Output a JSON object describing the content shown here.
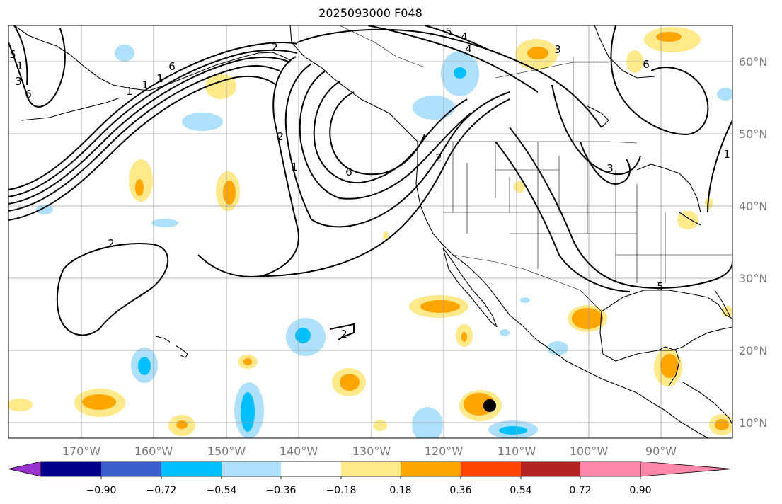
{
  "title": "2025093000 F048",
  "map": {
    "lon_labels": [
      "170°W",
      "160°W",
      "150°W",
      "140°W",
      "130°W",
      "120°W",
      "110°W",
      "100°W",
      "90°W"
    ],
    "lat_labels": [
      "60°N",
      "50°N",
      "40°N",
      "30°N",
      "20°N",
      "10°N"
    ],
    "contour_labels": [
      "5",
      "4",
      "3",
      "2",
      "2",
      "6",
      "6",
      "2",
      "3",
      "6",
      "5",
      "2",
      "2",
      "1",
      "3",
      "1",
      "1",
      "1",
      "1",
      "1",
      "4",
      "5",
      "6"
    ],
    "marker": "storm-center-dot",
    "colors": {
      "coast": "#000000",
      "grid": "#9e9e9e",
      "contour": "#000000"
    }
  },
  "colorbar": {
    "tick_labels": [
      "−0.90",
      "−0.72",
      "−0.54",
      "−0.36",
      "−0.18",
      "0.18",
      "0.36",
      "0.54",
      "0.72",
      "0.90"
    ],
    "colors": [
      "#9932cc",
      "#00008b",
      "#3a5fcd",
      "#00bfff",
      "#aee0fb",
      "#ffffff",
      "#ffe98a",
      "#ffa500",
      "#ff4500",
      "#b22222",
      "#ff88aa"
    ]
  }
}
